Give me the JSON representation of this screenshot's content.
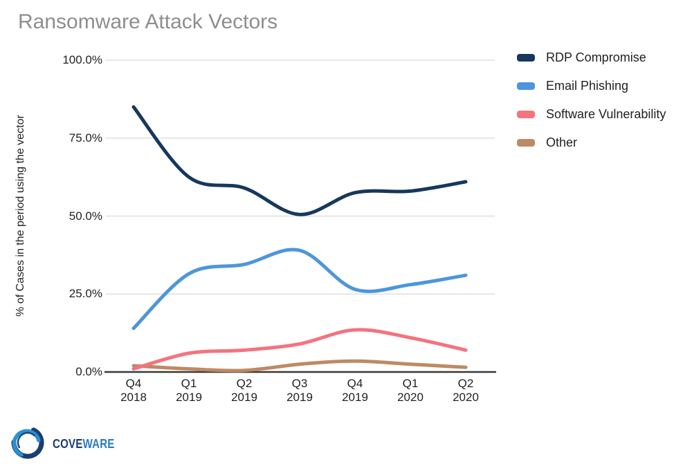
{
  "title": "Ransomware Attack Vectors",
  "chart_data": {
    "type": "line",
    "title": "Ransomware Attack Vectors",
    "xlabel": "",
    "ylabel": "% of Cases in the period using the vector",
    "categories": [
      "Q4 2018",
      "Q1 2019",
      "Q2 2019",
      "Q3 2019",
      "Q4 2019",
      "Q1 2020",
      "Q2 2020"
    ],
    "ylim": [
      0,
      100
    ],
    "grid": true,
    "smooth": true,
    "legend_position": "right",
    "y_ticks": [
      {
        "value": 0,
        "label": "0.0%"
      },
      {
        "value": 25,
        "label": "25.0%"
      },
      {
        "value": 50,
        "label": "50.0%"
      },
      {
        "value": 75,
        "label": "75.0%"
      },
      {
        "value": 100,
        "label": "100.0%"
      }
    ],
    "series": [
      {
        "name": "RDP Compromise",
        "color": "#17375E",
        "values": [
          85,
          62.5,
          59,
          50.5,
          57.5,
          58,
          61
        ]
      },
      {
        "name": "Email Phishing",
        "color": "#4D96DB",
        "values": [
          14,
          31.5,
          34.5,
          39,
          26.5,
          28,
          31
        ]
      },
      {
        "name": "Software Vulnerability",
        "color": "#F4737E",
        "values": [
          1,
          6,
          7,
          9,
          13.5,
          11,
          7
        ]
      },
      {
        "name": "Other",
        "color": "#BE8A64",
        "values": [
          2,
          1,
          0.5,
          2.5,
          3.5,
          2.5,
          1.5
        ]
      }
    ]
  },
  "colors": {
    "title_text": "#8e8e8e",
    "axis_text": "#1f1f1f",
    "gridline": "#d9d9d9",
    "axis_line": "#383838",
    "background": "#ffffff",
    "logo_navy": "#1b3f6e",
    "logo_blue": "#2a7dc0"
  },
  "logo": {
    "brand_part1": "COVE",
    "brand_part2": "WARE"
  }
}
